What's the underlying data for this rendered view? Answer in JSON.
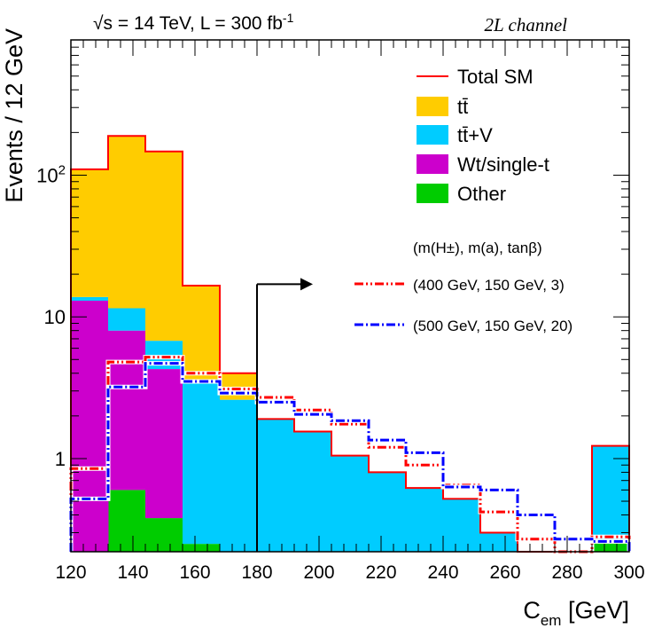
{
  "chart_data": {
    "type": "stacked-histogram",
    "header_left": "√s = 14 TeV, L = 300 fb",
    "header_left_sup": "-1",
    "header_right": "2L channel",
    "xlabel_main": "C",
    "xlabel_sub": "em",
    "xlabel_unit": " [GeV]",
    "ylabel": "Events / 12 GeV",
    "xlim": [
      120,
      300
    ],
    "ylim": [
      0.22,
      900
    ],
    "yscale": "log",
    "bin_edges": [
      120,
      132,
      144,
      156,
      168,
      180,
      192,
      204,
      216,
      228,
      240,
      252,
      264,
      276,
      288,
      300
    ],
    "x_ticks": [
      "120",
      "140",
      "160",
      "180",
      "200",
      "220",
      "240",
      "260",
      "280",
      "300"
    ],
    "y_ticks": [
      {
        "base": "10",
        "exp": "2"
      },
      {
        "base": "10",
        "exp": ""
      },
      {
        "base": "1",
        "exp": ""
      }
    ],
    "cut": {
      "value": 180,
      "arrow_to": 198,
      "height": 17
    },
    "stack": [
      {
        "name": "Other",
        "color": "#00cc00",
        "values": [
          0,
          0.6,
          0.38,
          0.25,
          0,
          0,
          0,
          0,
          0,
          0,
          0,
          0,
          0,
          0,
          0.26
        ]
      },
      {
        "name": "Wt/single-t",
        "color": "#cc00cc",
        "values": [
          13,
          7.4,
          3.9,
          0,
          0,
          0,
          0,
          0,
          0,
          0,
          0,
          0,
          0,
          0,
          0
        ]
      },
      {
        "name": "tt̄+V",
        "color": "#00ccff",
        "values": [
          0.8,
          3.5,
          2.5,
          3.3,
          2.6,
          1.9,
          1.55,
          1.05,
          0.8,
          0.62,
          0.52,
          0.3,
          0.22,
          0.2,
          0.97
        ]
      },
      {
        "name": "tt̄",
        "color": "#ffcc00",
        "values": [
          96,
          178,
          140,
          13,
          1.4,
          0,
          0,
          0,
          0,
          0,
          0,
          0,
          0,
          0,
          0
        ]
      }
    ],
    "total": {
      "name": "Total SM",
      "color": "#ff0000",
      "values": [
        110,
        189,
        147,
        16.6,
        4.0,
        1.9,
        1.55,
        1.05,
        0.8,
        0.62,
        0.52,
        0.3,
        0.22,
        0.2,
        1.23
      ]
    },
    "signals": [
      {
        "name": "(400 GeV, 150 GeV, 3)",
        "color": "#ff0000",
        "values": [
          0.85,
          4.8,
          5.2,
          4.0,
          3.1,
          2.7,
          2.2,
          1.75,
          1.2,
          0.9,
          0.65,
          0.42,
          0.27,
          0.22,
          0.28
        ]
      },
      {
        "name": "(500 GeV, 150 GeV, 20)",
        "color": "#0000ff",
        "values": [
          0.52,
          3.2,
          4.7,
          3.5,
          2.9,
          2.5,
          2.05,
          1.85,
          1.35,
          1.1,
          0.63,
          0.6,
          0.4,
          0.27,
          0.26
        ]
      }
    ],
    "legend": {
      "entries": [
        "Total SM",
        "tt̄",
        "tt̄+V",
        "Wt/single-t",
        "Other"
      ],
      "signal_header": "(m(H±), m(a), tanβ)",
      "signal_entries": [
        "(400 GeV, 150 GeV, 3)",
        "(500 GeV, 150 GeV, 20)"
      ]
    }
  }
}
